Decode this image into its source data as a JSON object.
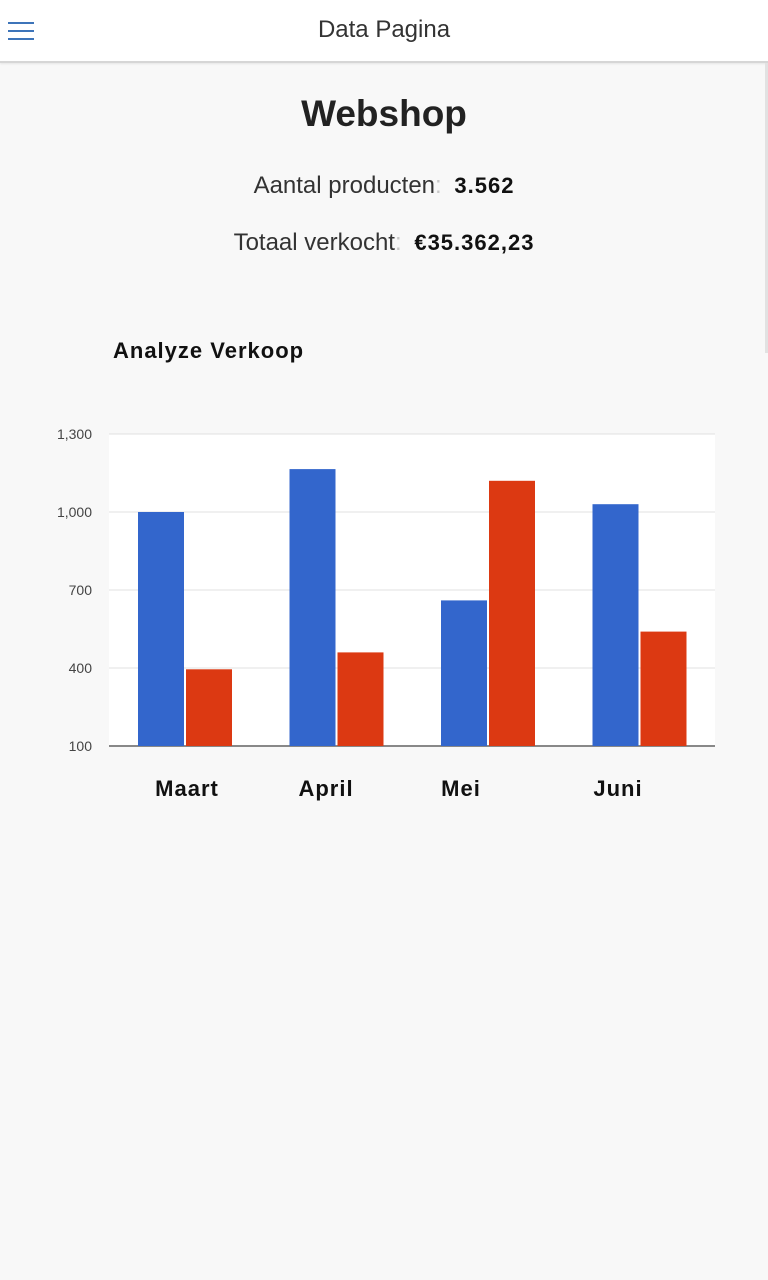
{
  "header": {
    "title": "Data Pagina",
    "menu_icon": "hamburger-menu-icon"
  },
  "main": {
    "title": "Webshop",
    "stats": [
      {
        "label": "Aantal producten",
        "value": "3.562"
      },
      {
        "label": "Totaal verkocht",
        "value": "€35.362,23"
      }
    ]
  },
  "chart_data": {
    "type": "bar",
    "title": "Analyze Verkoop",
    "categories": [
      "Maart",
      "April",
      "Mei",
      "Juni"
    ],
    "series": [
      {
        "values": [
          1000,
          1165,
          660,
          1030
        ],
        "color": "#3366cc"
      },
      {
        "values": [
          395,
          460,
          1120,
          540
        ],
        "color": "#dc3912"
      }
    ],
    "yticks": [
      "1,300",
      "1,000",
      "700",
      "400",
      "100"
    ],
    "ylim": [
      100,
      1300
    ],
    "grid": true,
    "legend": "none"
  }
}
